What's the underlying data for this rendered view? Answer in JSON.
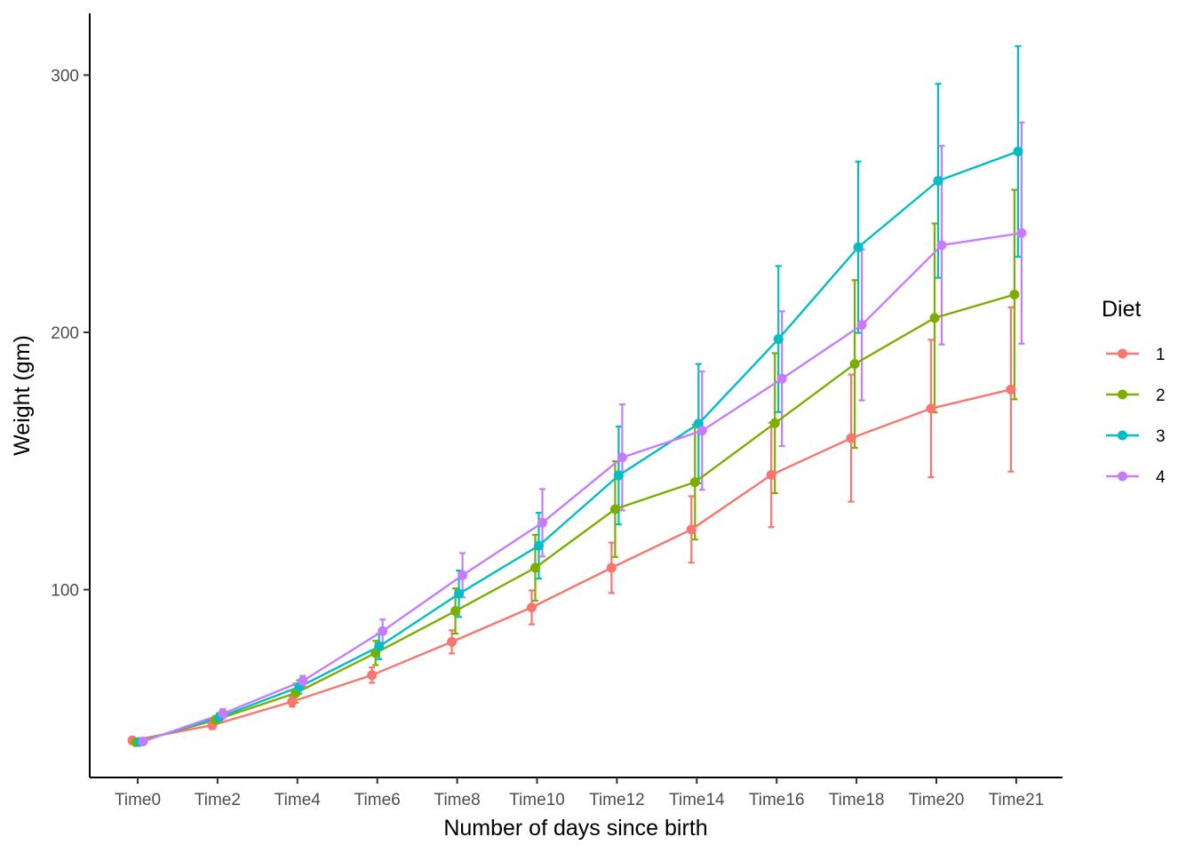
{
  "chart_data": {
    "type": "line",
    "title": "",
    "xlabel": "Number of days since birth",
    "ylabel": "Weight (gm)",
    "categories": [
      "Time0",
      "Time2",
      "Time4",
      "Time6",
      "Time8",
      "Time10",
      "Time12",
      "Time14",
      "Time16",
      "Time18",
      "Time20",
      "Time21"
    ],
    "ylim": [
      27,
      324
    ],
    "yticks": [
      100,
      200,
      300
    ],
    "grid": false,
    "legend": {
      "title": "Diet",
      "position": "right"
    },
    "series": [
      {
        "name": "1",
        "color": "#F8766D",
        "values": [
          41.4,
          47.3,
          56.5,
          66.8,
          79.7,
          93.1,
          108.5,
          123.4,
          144.6,
          158.9,
          170.4,
          177.8
        ],
        "lower": [
          40.1,
          45.8,
          54.5,
          63.8,
          75.2,
          86.5,
          98.7,
          110.5,
          124.3,
          134.2,
          143.7,
          145.9
        ],
        "upper": [
          42.7,
          48.8,
          58.5,
          69.8,
          84.2,
          99.7,
          118.3,
          136.3,
          164.9,
          183.6,
          197.1,
          209.7
        ]
      },
      {
        "name": "2",
        "color": "#7CAE00",
        "values": [
          40.7,
          49.4,
          59.8,
          75.4,
          91.7,
          108.5,
          131.3,
          141.8,
          164.7,
          187.7,
          205.6,
          214.7
        ],
        "lower": [
          40.2,
          47.9,
          56.1,
          70.7,
          82.9,
          95.7,
          112.7,
          119.5,
          137.5,
          155.1,
          168.9,
          174.0
        ],
        "upper": [
          41.2,
          50.9,
          63.5,
          80.1,
          100.5,
          121.3,
          149.9,
          164.1,
          191.9,
          220.3,
          242.3,
          255.4
        ]
      },
      {
        "name": "3",
        "color": "#00BFC4",
        "values": [
          40.8,
          50.4,
          62.2,
          77.9,
          98.4,
          117.1,
          144.4,
          164.5,
          197.4,
          233.1,
          258.9,
          270.3
        ],
        "lower": [
          40.0,
          48.8,
          59.6,
          73.0,
          89.4,
          104.3,
          125.4,
          141.3,
          169.0,
          199.8,
          221.2,
          229.4
        ],
        "upper": [
          41.6,
          52.0,
          64.8,
          82.8,
          107.4,
          129.9,
          163.4,
          187.7,
          225.8,
          266.4,
          296.6,
          311.2
        ]
      },
      {
        "name": "4",
        "color": "#C77CFF",
        "values": [
          41.0,
          51.8,
          64.5,
          83.9,
          105.6,
          126.0,
          151.4,
          161.8,
          182.0,
          202.9,
          233.9,
          238.6
        ],
        "lower": [
          40.3,
          50.0,
          62.5,
          79.4,
          97.0,
          112.9,
          130.8,
          138.8,
          155.8,
          173.6,
          195.3,
          195.6
        ],
        "upper": [
          41.7,
          53.6,
          66.5,
          88.4,
          114.2,
          139.1,
          172.0,
          184.8,
          208.2,
          232.2,
          272.5,
          281.6
        ]
      }
    ]
  }
}
